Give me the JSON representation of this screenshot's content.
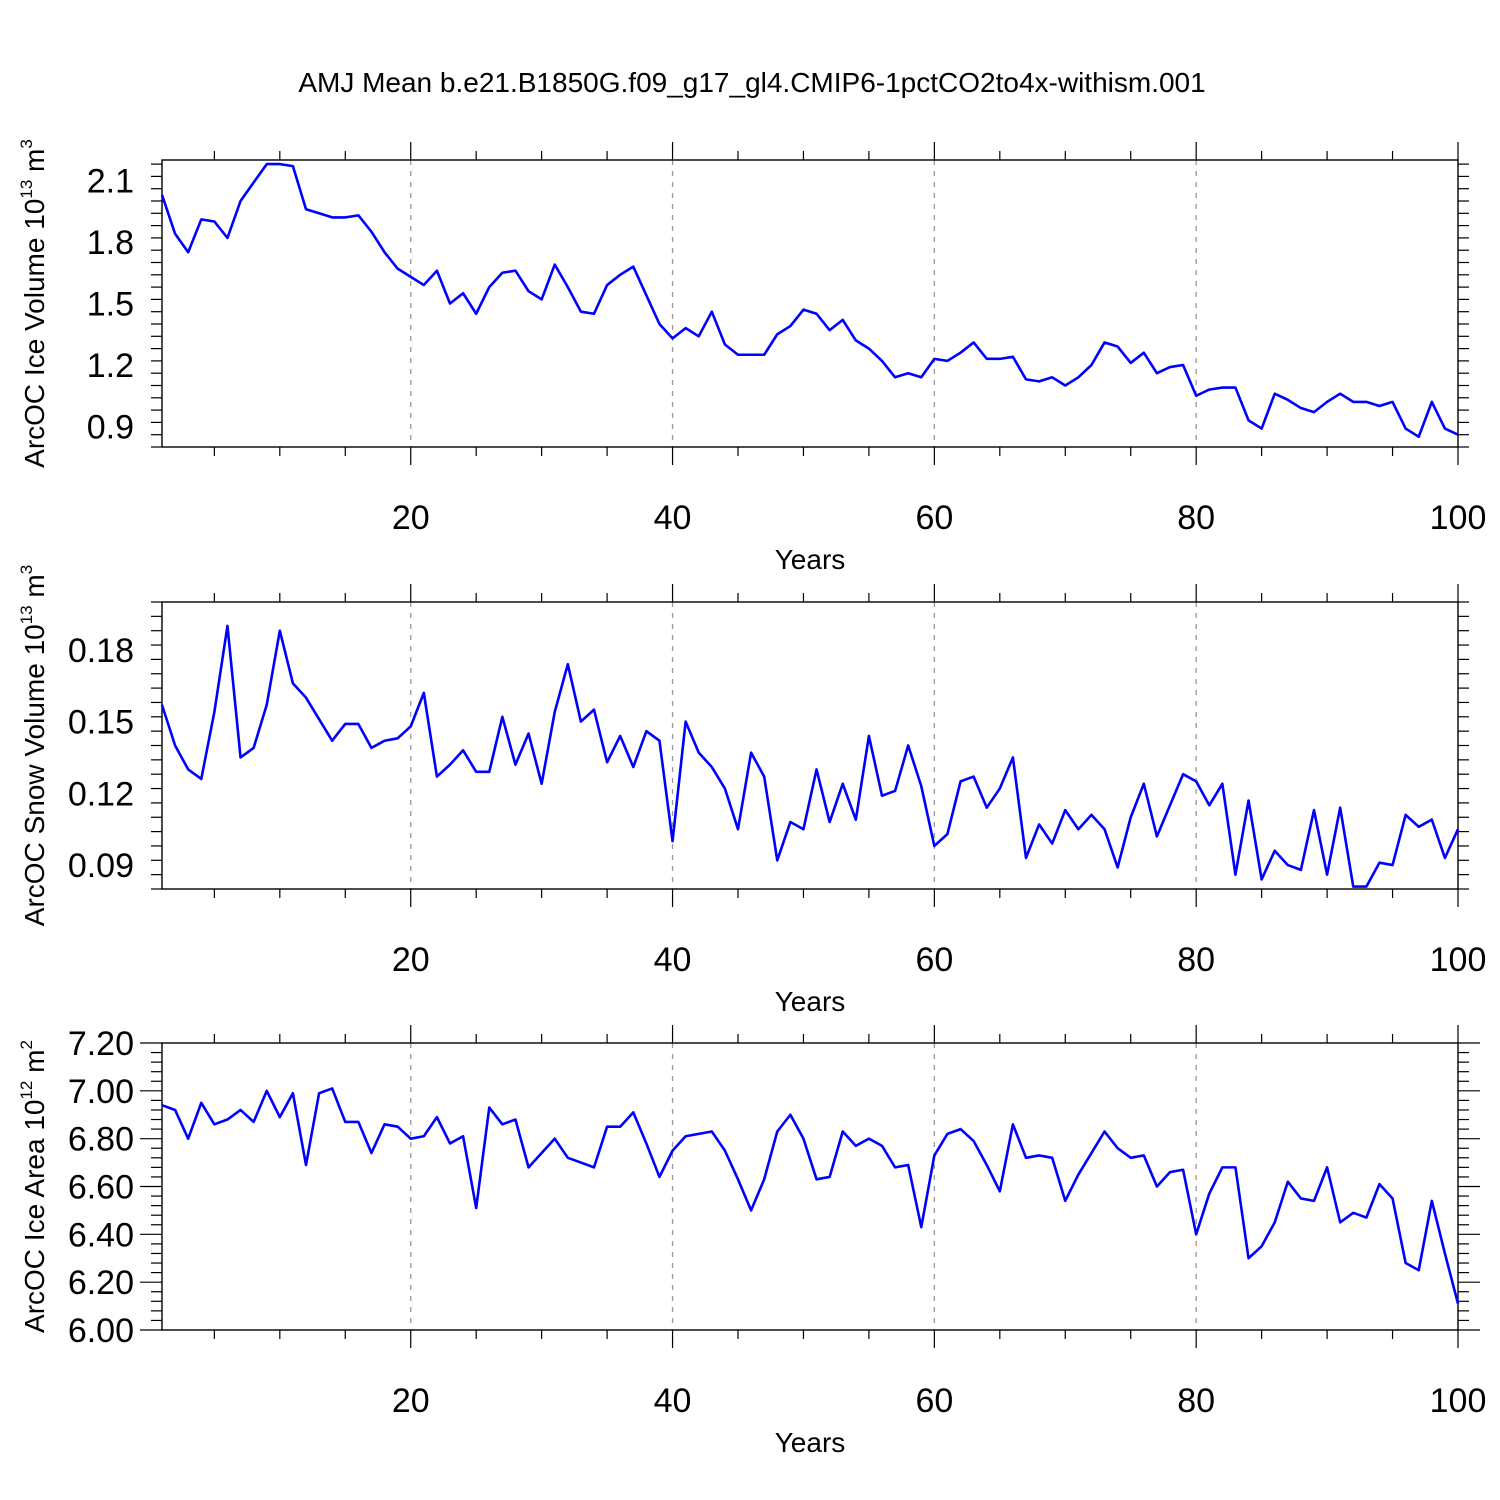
{
  "title": "AMJ Mean b.e21.B1850G.f09_g17_gl4.CMIP6-1pctCO2to4x-withism.001",
  "line_color": "#0000ff",
  "chart_data": [
    {
      "type": "line",
      "title": "",
      "xlabel": "Years",
      "ylabel": "ArcOC Ice Volume",
      "ylabel_unit_base": "10",
      "ylabel_unit_exp": "13",
      "ylabel_unit_rest": " m",
      "ylabel_unit_rest_exp": "3",
      "xlim": [
        1,
        100
      ],
      "ylim": [
        0.8,
        2.2
      ],
      "xticks": [
        20,
        40,
        60,
        80,
        100
      ],
      "yticks": [
        0.9,
        1.2,
        1.5,
        1.8,
        2.1
      ],
      "ytick_labels": [
        "0.9",
        "1.2",
        "1.5",
        "1.8",
        "2.1"
      ],
      "grid": "vertical dashed at major x ticks",
      "series": [
        {
          "values": [
            2.03,
            1.84,
            1.75,
            1.91,
            1.9,
            1.82,
            2.0,
            2.09,
            2.18,
            2.18,
            2.17,
            1.96,
            1.94,
            1.92,
            1.92,
            1.93,
            1.85,
            1.75,
            1.67,
            1.63,
            1.59,
            1.66,
            1.5,
            1.55,
            1.45,
            1.58,
            1.65,
            1.66,
            1.56,
            1.52,
            1.69,
            1.58,
            1.46,
            1.45,
            1.59,
            1.64,
            1.68,
            1.54,
            1.4,
            1.33,
            1.38,
            1.34,
            1.46,
            1.3,
            1.25,
            1.25,
            1.25,
            1.35,
            1.39,
            1.47,
            1.45,
            1.37,
            1.42,
            1.32,
            1.28,
            1.22,
            1.14,
            1.16,
            1.14,
            1.23,
            1.22,
            1.26,
            1.31,
            1.23,
            1.23,
            1.24,
            1.13,
            1.12,
            1.14,
            1.1,
            1.14,
            1.2,
            1.31,
            1.29,
            1.21,
            1.26,
            1.16,
            1.19,
            1.2,
            1.05,
            1.08,
            1.09,
            1.09,
            0.93,
            0.89,
            1.06,
            1.03,
            0.99,
            0.97,
            1.02,
            1.06,
            1.02,
            1.02,
            1.0,
            1.02,
            0.89,
            0.85,
            1.02,
            0.89,
            0.86
          ]
        }
      ]
    },
    {
      "type": "line",
      "title": "",
      "xlabel": "Years",
      "ylabel": "ArcOC Snow Volume",
      "ylabel_unit_base": "10",
      "ylabel_unit_exp": "13",
      "ylabel_unit_rest": " m",
      "ylabel_unit_rest_exp": "3",
      "xlim": [
        1,
        100
      ],
      "ylim": [
        0.08,
        0.2
      ],
      "xticks": [
        20,
        40,
        60,
        80,
        100
      ],
      "yticks": [
        0.09,
        0.12,
        0.15,
        0.18
      ],
      "ytick_labels": [
        "0.09",
        "0.12",
        "0.15",
        "0.18"
      ],
      "grid": "vertical dashed at major x ticks",
      "series": [
        {
          "values": [
            0.157,
            0.14,
            0.13,
            0.126,
            0.154,
            0.19,
            0.135,
            0.139,
            0.157,
            0.188,
            0.166,
            0.16,
            0.151,
            0.142,
            0.149,
            0.149,
            0.139,
            0.142,
            0.143,
            0.148,
            0.162,
            0.127,
            0.132,
            0.138,
            0.129,
            0.129,
            0.152,
            0.132,
            0.145,
            0.124,
            0.154,
            0.174,
            0.15,
            0.155,
            0.133,
            0.144,
            0.131,
            0.146,
            0.142,
            0.1,
            0.15,
            0.137,
            0.131,
            0.122,
            0.105,
            0.137,
            0.127,
            0.092,
            0.108,
            0.105,
            0.13,
            0.108,
            0.124,
            0.109,
            0.144,
            0.119,
            0.121,
            0.14,
            0.123,
            0.098,
            0.103,
            0.125,
            0.127,
            0.114,
            0.122,
            0.135,
            0.093,
            0.107,
            0.099,
            0.113,
            0.105,
            0.111,
            0.105,
            0.089,
            0.11,
            0.124,
            0.102,
            0.115,
            0.128,
            0.125,
            0.115,
            0.124,
            0.086,
            0.117,
            0.084,
            0.096,
            0.09,
            0.088,
            0.113,
            0.086,
            0.114,
            0.081,
            0.081,
            0.091,
            0.09,
            0.111,
            0.106,
            0.109,
            0.093,
            0.105
          ]
        }
      ]
    },
    {
      "type": "line",
      "title": "",
      "xlabel": "Years",
      "ylabel": "ArcOC Ice Area",
      "ylabel_unit_base": "10",
      "ylabel_unit_exp": "12",
      "ylabel_unit_rest": " m",
      "ylabel_unit_rest_exp": "2",
      "xlim": [
        1,
        100
      ],
      "ylim": [
        6.0,
        7.2
      ],
      "xticks": [
        20,
        40,
        60,
        80,
        100
      ],
      "yticks": [
        6.0,
        6.2,
        6.4,
        6.6,
        6.8,
        7.0,
        7.2
      ],
      "ytick_labels": [
        "6.00",
        "6.20",
        "6.40",
        "6.60",
        "6.80",
        "7.00",
        "7.20"
      ],
      "grid": "vertical dashed at major x ticks",
      "series": [
        {
          "values": [
            6.94,
            6.92,
            6.8,
            6.95,
            6.86,
            6.88,
            6.92,
            6.87,
            7.0,
            6.89,
            6.99,
            6.69,
            6.99,
            7.01,
            6.87,
            6.87,
            6.74,
            6.86,
            6.85,
            6.8,
            6.81,
            6.89,
            6.78,
            6.81,
            6.51,
            6.93,
            6.86,
            6.88,
            6.68,
            6.74,
            6.8,
            6.72,
            6.7,
            6.68,
            6.85,
            6.85,
            6.91,
            6.78,
            6.64,
            6.75,
            6.81,
            6.82,
            6.83,
            6.75,
            6.63,
            6.5,
            6.63,
            6.83,
            6.9,
            6.8,
            6.63,
            6.64,
            6.83,
            6.77,
            6.8,
            6.77,
            6.68,
            6.69,
            6.43,
            6.73,
            6.82,
            6.84,
            6.79,
            6.69,
            6.58,
            6.86,
            6.72,
            6.73,
            6.72,
            6.54,
            6.65,
            6.74,
            6.83,
            6.76,
            6.72,
            6.73,
            6.6,
            6.66,
            6.67,
            6.4,
            6.57,
            6.68,
            6.68,
            6.3,
            6.35,
            6.45,
            6.62,
            6.55,
            6.54,
            6.68,
            6.45,
            6.49,
            6.47,
            6.61,
            6.55,
            6.28,
            6.25,
            6.54,
            6.32,
            6.11
          ]
        }
      ]
    }
  ]
}
